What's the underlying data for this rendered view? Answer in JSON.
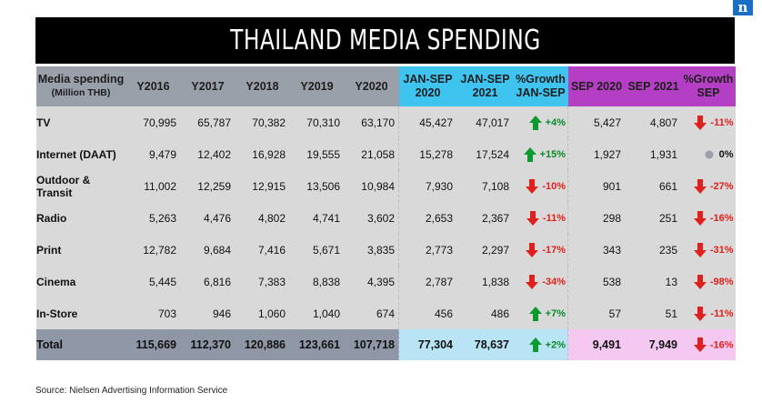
{
  "logo_letter": "n",
  "title": "THAILAND MEDIA SPENDING",
  "headers": {
    "name_line1": "Media spending",
    "name_line2": "(Million THB)",
    "y2016": "Y2016",
    "y2017": "Y2017",
    "y2018": "Y2018",
    "y2019": "Y2019",
    "y2020": "Y2020",
    "js2020_1": "JAN-SEP",
    "js2020_2": "2020",
    "js2021_1": "JAN-SEP",
    "js2021_2": "2021",
    "gjs_1": "%Growth",
    "gjs_2": "JAN-SEP",
    "sep2020": "SEP 2020",
    "sep2021": "SEP 2021",
    "gsep_1": "%Growth",
    "gsep_2": "SEP"
  },
  "colors": {
    "up": "#0a9a2e",
    "down": "#e0201c",
    "neutral": "#9aa0aa"
  },
  "rows": [
    {
      "name": "TV",
      "y2016": "70,995",
      "y2017": "65,787",
      "y2018": "70,382",
      "y2019": "70,310",
      "y2020": "63,170",
      "js2020": "45,427",
      "js2021": "47,017",
      "gjs": "+4%",
      "gjs_dir": "up",
      "sep2020": "5,427",
      "sep2021": "4,807",
      "gsep": "-11%",
      "gsep_dir": "down"
    },
    {
      "name": "Internet (DAAT)",
      "y2016": "9,479",
      "y2017": "12,402",
      "y2018": "16,928",
      "y2019": "19,555",
      "y2020": "21,058",
      "js2020": "15,278",
      "js2021": "17,524",
      "gjs": "+15%",
      "gjs_dir": "up",
      "sep2020": "1,927",
      "sep2021": "1,931",
      "gsep": "0%",
      "gsep_dir": "flat"
    },
    {
      "name": "Outdoor & Transit",
      "y2016": "11,002",
      "y2017": "12,259",
      "y2018": "12,915",
      "y2019": "13,506",
      "y2020": "10,984",
      "js2020": "7,930",
      "js2021": "7,108",
      "gjs": "-10%",
      "gjs_dir": "down",
      "sep2020": "901",
      "sep2021": "661",
      "gsep": "-27%",
      "gsep_dir": "down"
    },
    {
      "name": "Radio",
      "y2016": "5,263",
      "y2017": "4,476",
      "y2018": "4,802",
      "y2019": "4,741",
      "y2020": "3,602",
      "js2020": "2,653",
      "js2021": "2,367",
      "gjs": "-11%",
      "gjs_dir": "down",
      "sep2020": "298",
      "sep2021": "251",
      "gsep": "-16%",
      "gsep_dir": "down"
    },
    {
      "name": "Print",
      "y2016": "12,782",
      "y2017": "9,684",
      "y2018": "7,416",
      "y2019": "5,671",
      "y2020": "3,835",
      "js2020": "2,773",
      "js2021": "2,297",
      "gjs": "-17%",
      "gjs_dir": "down",
      "sep2020": "343",
      "sep2021": "235",
      "gsep": "-31%",
      "gsep_dir": "down"
    },
    {
      "name": "Cinema",
      "y2016": "5,445",
      "y2017": "6,816",
      "y2018": "7,383",
      "y2019": "8,838",
      "y2020": "4,395",
      "js2020": "2,787",
      "js2021": "1,838",
      "gjs": "-34%",
      "gjs_dir": "down",
      "sep2020": "538",
      "sep2021": "13",
      "gsep": "-98%",
      "gsep_dir": "down"
    },
    {
      "name": "In-Store",
      "y2016": "703",
      "y2017": "946",
      "y2018": "1,060",
      "y2019": "1,040",
      "y2020": "674",
      "js2020": "456",
      "js2021": "486",
      "gjs": "+7%",
      "gjs_dir": "up",
      "sep2020": "57",
      "sep2021": "51",
      "gsep": "-11%",
      "gsep_dir": "down"
    }
  ],
  "total": {
    "name": "Total",
    "y2016": "115,669",
    "y2017": "112,370",
    "y2018": "120,886",
    "y2019": "123,661",
    "y2020": "107,718",
    "js2020": "77,304",
    "js2021": "78,637",
    "gjs": "+2%",
    "gjs_dir": "up",
    "sep2020": "9,491",
    "sep2021": "7,949",
    "gsep": "-16%",
    "gsep_dir": "down"
  },
  "source": "Source: Nielsen Advertising Information Service"
}
